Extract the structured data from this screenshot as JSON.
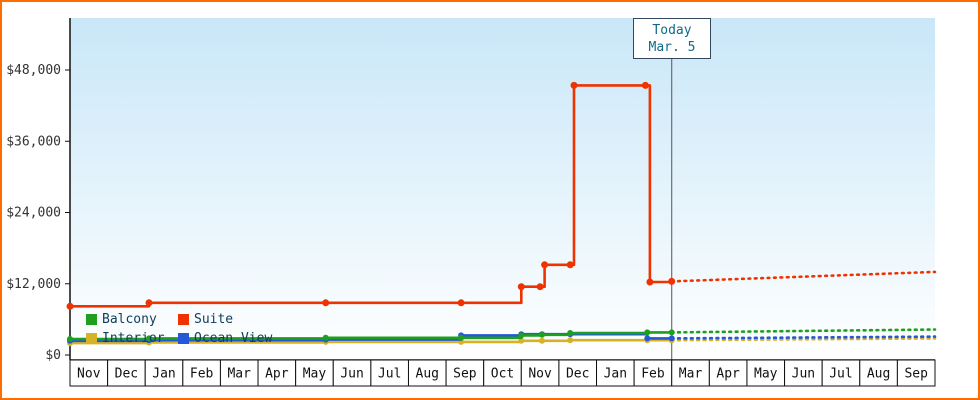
{
  "colors": {
    "frame_border": "#ff6d00",
    "plot_gradient_top": "#c9e7f8",
    "plot_gradient_bottom": "#ffffff",
    "axis": "#111111",
    "ytick_text": "#333333",
    "month_text": "#111111",
    "month_cell_fill": "#ffffff",
    "today_line": "#555555",
    "today_box_border": "#33475e",
    "today_text": "#0e6b8c",
    "legend_text": "#123c55"
  },
  "chart_data": {
    "type": "line",
    "x_axis": {
      "months": [
        "Nov",
        "Dec",
        "Jan",
        "Feb",
        "Mar",
        "Apr",
        "May",
        "Jun",
        "Jul",
        "Aug",
        "Sep",
        "Oct",
        "Nov",
        "Dec",
        "Jan",
        "Feb",
        "Mar",
        "Apr",
        "May",
        "Jun",
        "Jul",
        "Aug",
        "Sep"
      ]
    },
    "y_axis": {
      "min": 0,
      "max": 48000,
      "ticks": [
        {
          "label": "$0",
          "value": 0
        },
        {
          "label": "$12,000",
          "value": 12000
        },
        {
          "label": "$24,000",
          "value": 24000
        },
        {
          "label": "$36,000",
          "value": 36000
        },
        {
          "label": "$48,000",
          "value": 48000
        }
      ]
    },
    "today": {
      "label": "Today",
      "date": "Mar. 5",
      "x_month": 16
    },
    "series": [
      {
        "name": "Interior",
        "color": "#d8b226",
        "points": [
          [
            0,
            2000
          ],
          [
            2.1,
            2100
          ],
          [
            6.8,
            2200
          ],
          [
            10.4,
            2200
          ],
          [
            12.0,
            2400
          ],
          [
            12.55,
            2400
          ],
          [
            13.3,
            2500
          ],
          [
            15.35,
            2500
          ],
          [
            16,
            2500
          ]
        ],
        "forecast": [
          [
            16,
            2500
          ],
          [
            23,
            2800
          ]
        ]
      },
      {
        "name": "Ocean View",
        "color": "#2458d8",
        "points": [
          [
            0,
            2400
          ],
          [
            2.1,
            2500
          ],
          [
            6.8,
            2600
          ],
          [
            10.4,
            3300
          ],
          [
            12.0,
            3500
          ],
          [
            12.55,
            3500
          ],
          [
            13.3,
            3500
          ],
          [
            15.35,
            2800
          ],
          [
            16,
            2800
          ]
        ],
        "forecast": [
          [
            16,
            2800
          ],
          [
            23,
            3100
          ]
        ]
      },
      {
        "name": "Balcony",
        "color": "#1da01d",
        "points": [
          [
            0,
            2700
          ],
          [
            2.1,
            2800
          ],
          [
            6.8,
            2900
          ],
          [
            10.4,
            2900
          ],
          [
            12.0,
            3300
          ],
          [
            12.55,
            3400
          ],
          [
            13.3,
            3700
          ],
          [
            15.35,
            3800
          ],
          [
            16,
            3800
          ]
        ],
        "forecast": [
          [
            16,
            3800
          ],
          [
            23,
            4300
          ]
        ]
      },
      {
        "name": "Suite",
        "color": "#ee3300",
        "points": [
          [
            0,
            8200
          ],
          [
            2.1,
            8800
          ],
          [
            6.8,
            8800
          ],
          [
            10.4,
            8800
          ],
          [
            12.0,
            11500
          ],
          [
            12.5,
            11500
          ],
          [
            12.62,
            15200
          ],
          [
            13.3,
            15200
          ],
          [
            13.4,
            45400
          ],
          [
            15.3,
            45400
          ],
          [
            15.42,
            12300
          ],
          [
            16,
            12400
          ]
        ],
        "forecast": [
          [
            16,
            12400
          ],
          [
            23,
            14000
          ]
        ]
      }
    ],
    "legend_rows": [
      [
        "Balcony",
        "Suite"
      ],
      [
        "Interior",
        "Ocean View"
      ]
    ]
  }
}
